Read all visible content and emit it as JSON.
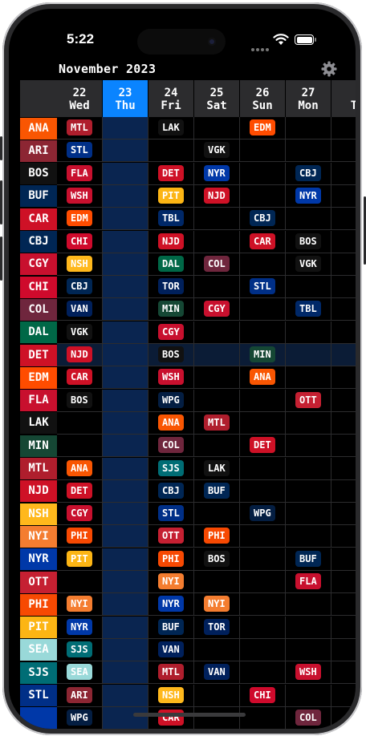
{
  "status": {
    "time": "5:22"
  },
  "header": {
    "month": "November 2023"
  },
  "icons": {
    "settings": "gear-icon",
    "wifi": "wifi-icon",
    "battery": "battery-icon"
  },
  "days": [
    {
      "date": "22",
      "weekday": "Wed"
    },
    {
      "date": "23",
      "weekday": "Thu",
      "today": true
    },
    {
      "date": "24",
      "weekday": "Fri"
    },
    {
      "date": "25",
      "weekday": "Sat"
    },
    {
      "date": "26",
      "weekday": "Sun"
    },
    {
      "date": "27",
      "weekday": "Mon"
    },
    {
      "date": "",
      "weekday": "T"
    }
  ],
  "team_colors": {
    "ANA": "#f95602",
    "ARI": "#8c2633",
    "BOS": "#111111",
    "BUF": "#002654",
    "CAR": "#ce1126",
    "CBJ": "#002654",
    "CGY": "#c8102e",
    "CHI": "#cf0a2c",
    "COL": "#6f263d",
    "DAL": "#006847",
    "DET": "#ce1126",
    "EDM": "#ff4c00",
    "FLA": "#c8102e",
    "LAK": "#111111",
    "MIN": "#154734",
    "MTL": "#af1e2d",
    "NJD": "#ce1126",
    "NSH": "#ffb81c",
    "NYI": "#f47d30",
    "NYR": "#0038a8",
    "OTT": "#c52032",
    "PHI": "#f74902",
    "PIT": "#fcb514",
    "SEA": "#99d9d9",
    "SJS": "#006d75",
    "STL": "#002f87",
    "TBL": "#002868",
    "TOR": "#00205b",
    "VAN": "#00205b",
    "VGK": "#111111",
    "WPG": "#041e42",
    "WSH": "#c8102e",
    "": "#0038a8"
  },
  "highlighted_team": "DET",
  "rows": [
    {
      "team": "ANA",
      "games": [
        "MTL",
        "",
        "LAK",
        "",
        "EDM",
        "",
        ""
      ]
    },
    {
      "team": "ARI",
      "games": [
        "STL",
        "",
        "",
        "VGK",
        "",
        "",
        ""
      ]
    },
    {
      "team": "BOS",
      "games": [
        "FLA",
        "",
        "DET",
        "NYR",
        "",
        "CBJ",
        ""
      ]
    },
    {
      "team": "BUF",
      "games": [
        "WSH",
        "",
        "PIT",
        "NJD",
        "",
        "NYR",
        ""
      ]
    },
    {
      "team": "CAR",
      "games": [
        "EDM",
        "",
        "TBL",
        "",
        "CBJ",
        "",
        ""
      ]
    },
    {
      "team": "CBJ",
      "games": [
        "CHI",
        "",
        "NJD",
        "",
        "CAR",
        "BOS",
        ""
      ]
    },
    {
      "team": "CGY",
      "games": [
        "NSH",
        "",
        "DAL",
        "COL",
        "",
        "VGK",
        ""
      ]
    },
    {
      "team": "CHI",
      "games": [
        "CBJ",
        "",
        "TOR",
        "",
        "STL",
        "",
        ""
      ]
    },
    {
      "team": "COL",
      "games": [
        "VAN",
        "",
        "MIN",
        "CGY",
        "",
        "TBL",
        ""
      ]
    },
    {
      "team": "DAL",
      "games": [
        "VGK",
        "",
        "CGY",
        "",
        "",
        "",
        ""
      ]
    },
    {
      "team": "DET",
      "games": [
        "NJD",
        "",
        "BOS",
        "",
        "MIN",
        "",
        ""
      ]
    },
    {
      "team": "EDM",
      "games": [
        "CAR",
        "",
        "WSH",
        "",
        "ANA",
        "",
        ""
      ]
    },
    {
      "team": "FLA",
      "games": [
        "BOS",
        "",
        "WPG",
        "",
        "",
        "OTT",
        ""
      ]
    },
    {
      "team": "LAK",
      "games": [
        "",
        "",
        "ANA",
        "MTL",
        "",
        "",
        ""
      ]
    },
    {
      "team": "MIN",
      "games": [
        "",
        "",
        "COL",
        "",
        "DET",
        "",
        ""
      ]
    },
    {
      "team": "MTL",
      "games": [
        "ANA",
        "",
        "SJS",
        "LAK",
        "",
        "",
        ""
      ]
    },
    {
      "team": "NJD",
      "games": [
        "DET",
        "",
        "CBJ",
        "BUF",
        "",
        "",
        ""
      ]
    },
    {
      "team": "NSH",
      "games": [
        "CGY",
        "",
        "STL",
        "",
        "WPG",
        "",
        ""
      ]
    },
    {
      "team": "NYI",
      "games": [
        "PHI",
        "",
        "OTT",
        "PHI",
        "",
        "",
        ""
      ]
    },
    {
      "team": "NYR",
      "games": [
        "PIT",
        "",
        "PHI",
        "BOS",
        "",
        "BUF",
        ""
      ]
    },
    {
      "team": "OTT",
      "games": [
        "",
        "",
        "NYI",
        "",
        "",
        "FLA",
        ""
      ]
    },
    {
      "team": "PHI",
      "games": [
        "NYI",
        "",
        "NYR",
        "NYI",
        "",
        "",
        ""
      ]
    },
    {
      "team": "PIT",
      "games": [
        "NYR",
        "",
        "BUF",
        "TOR",
        "",
        "",
        ""
      ]
    },
    {
      "team": "SEA",
      "games": [
        "SJS",
        "",
        "VAN",
        "",
        "",
        "",
        ""
      ]
    },
    {
      "team": "SJS",
      "games": [
        "SEA",
        "",
        "MTL",
        "VAN",
        "",
        "WSH",
        ""
      ]
    },
    {
      "team": "STL",
      "games": [
        "ARI",
        "",
        "NSH",
        "",
        "CHI",
        "",
        ""
      ]
    },
    {
      "team": "",
      "games": [
        "WPG",
        "",
        "CAR",
        "",
        "",
        "COL",
        ""
      ]
    }
  ]
}
